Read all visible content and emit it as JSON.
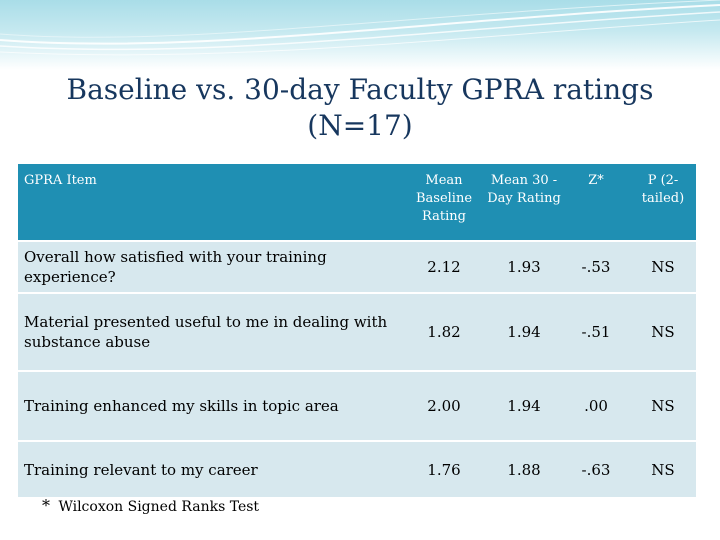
{
  "slide": {
    "title_line1": "Baseline vs. 30-day Faculty GPRA ratings",
    "title_line2": "(N=17)"
  },
  "table": {
    "headers": {
      "item": "GPRA Item",
      "baseline": "Mean Baseline Rating",
      "day30": "Mean 30 -Day Rating",
      "z": "Z*",
      "p": "P (2-tailed)"
    },
    "rows": [
      {
        "item": "Overall how satisfied with your training experience?",
        "baseline": "2.12",
        "day30": "1.93",
        "z": "-.53",
        "p": "NS"
      },
      {
        "item": "Material presented useful to me in dealing with substance abuse",
        "baseline": "1.82",
        "day30": "1.94",
        "z": "-.51",
        "p": "NS"
      },
      {
        "item": "Training enhanced my skills in topic area",
        "baseline": "2.00",
        "day30": "1.94",
        "z": ".00",
        "p": "NS"
      },
      {
        "item": "Training relevant to my career",
        "baseline": "1.76",
        "day30": "1.88",
        "z": "-.63",
        "p": "NS"
      }
    ]
  },
  "footnote": {
    "marker": "*",
    "text": "Wilcoxon Signed Ranks Test"
  },
  "colors": {
    "header_bg": "#1f8fb3",
    "row_bg": "#d7e8ee",
    "title": "#17375e",
    "band": "#a9dde8"
  }
}
